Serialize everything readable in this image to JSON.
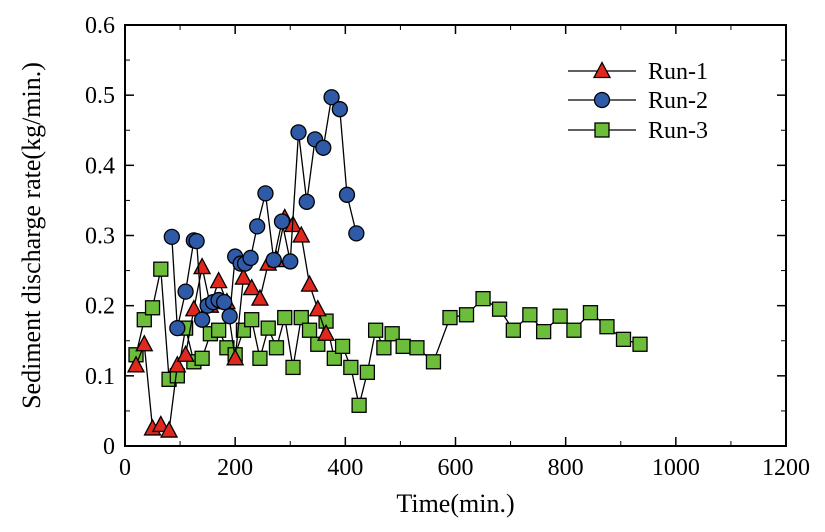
{
  "chart_data": {
    "type": "line",
    "xlabel": "Time(min.)",
    "ylabel": "Sediment discharge rate(kg/min.)",
    "xlim": [
      0,
      1200
    ],
    "ylim": [
      0,
      0.6
    ],
    "xticks": [
      0,
      200,
      400,
      600,
      800,
      1000,
      1200
    ],
    "yticks": [
      0,
      0.1,
      0.2,
      0.3,
      0.4,
      0.5,
      0.6
    ],
    "xtick_labels": [
      "0",
      "200",
      "400",
      "600",
      "800",
      "1000",
      "1200"
    ],
    "ytick_labels": [
      "0",
      "0.1",
      "0.2",
      "0.3",
      "0.4",
      "0.5",
      "0.6"
    ],
    "grid": false,
    "legend_position": "top-right",
    "series": [
      {
        "name": "Run-1",
        "marker": "triangle",
        "color": "#e0281e",
        "x": [
          20,
          35,
          50,
          65,
          80,
          95,
          110,
          125,
          140,
          155,
          170,
          185,
          200,
          215,
          230,
          245,
          260,
          275,
          290,
          305,
          320,
          335,
          350,
          365
        ],
        "y": [
          0.115,
          0.145,
          0.025,
          0.03,
          0.022,
          0.115,
          0.13,
          0.195,
          0.255,
          0.2,
          0.235,
          0.205,
          0.125,
          0.24,
          0.225,
          0.21,
          0.26,
          0.265,
          0.325,
          0.315,
          0.3,
          0.23,
          0.195,
          0.16
        ]
      },
      {
        "name": "Run-2",
        "marker": "circle",
        "color": "#2f5aa8",
        "x": [
          85,
          95,
          110,
          125,
          130,
          140,
          150,
          160,
          170,
          180,
          190,
          200,
          210,
          218,
          228,
          240,
          255,
          270,
          285,
          300,
          315,
          330,
          345,
          360,
          375,
          390,
          403,
          420
        ],
        "y": [
          0.298,
          0.168,
          0.22,
          0.293,
          0.292,
          0.18,
          0.2,
          0.205,
          0.208,
          0.205,
          0.185,
          0.27,
          0.26,
          0.26,
          0.268,
          0.313,
          0.36,
          0.265,
          0.32,
          0.263,
          0.447,
          0.348,
          0.437,
          0.425,
          0.497,
          0.48,
          0.358,
          0.303
        ]
      },
      {
        "name": "Run-3",
        "marker": "square",
        "color": "#6cbd3a",
        "x": [
          20,
          35,
          50,
          65,
          80,
          95,
          110,
          125,
          140,
          155,
          170,
          185,
          200,
          215,
          230,
          245,
          260,
          275,
          290,
          305,
          320,
          335,
          350,
          365,
          380,
          395,
          410,
          425,
          440,
          455,
          470,
          485,
          505,
          530,
          560,
          590,
          620,
          650,
          680,
          705,
          735,
          760,
          790,
          815,
          845,
          875,
          905,
          935
        ],
        "y": [
          0.13,
          0.18,
          0.197,
          0.252,
          0.095,
          0.1,
          0.168,
          0.12,
          0.125,
          0.16,
          0.165,
          0.14,
          0.13,
          0.165,
          0.18,
          0.125,
          0.168,
          0.14,
          0.183,
          0.112,
          0.183,
          0.165,
          0.145,
          0.178,
          0.125,
          0.142,
          0.112,
          0.058,
          0.105,
          0.165,
          0.14,
          0.16,
          0.142,
          0.14,
          0.12,
          0.183,
          0.187,
          0.21,
          0.195,
          0.165,
          0.187,
          0.163,
          0.185,
          0.165,
          0.19,
          0.17,
          0.152,
          0.145
        ]
      }
    ]
  }
}
